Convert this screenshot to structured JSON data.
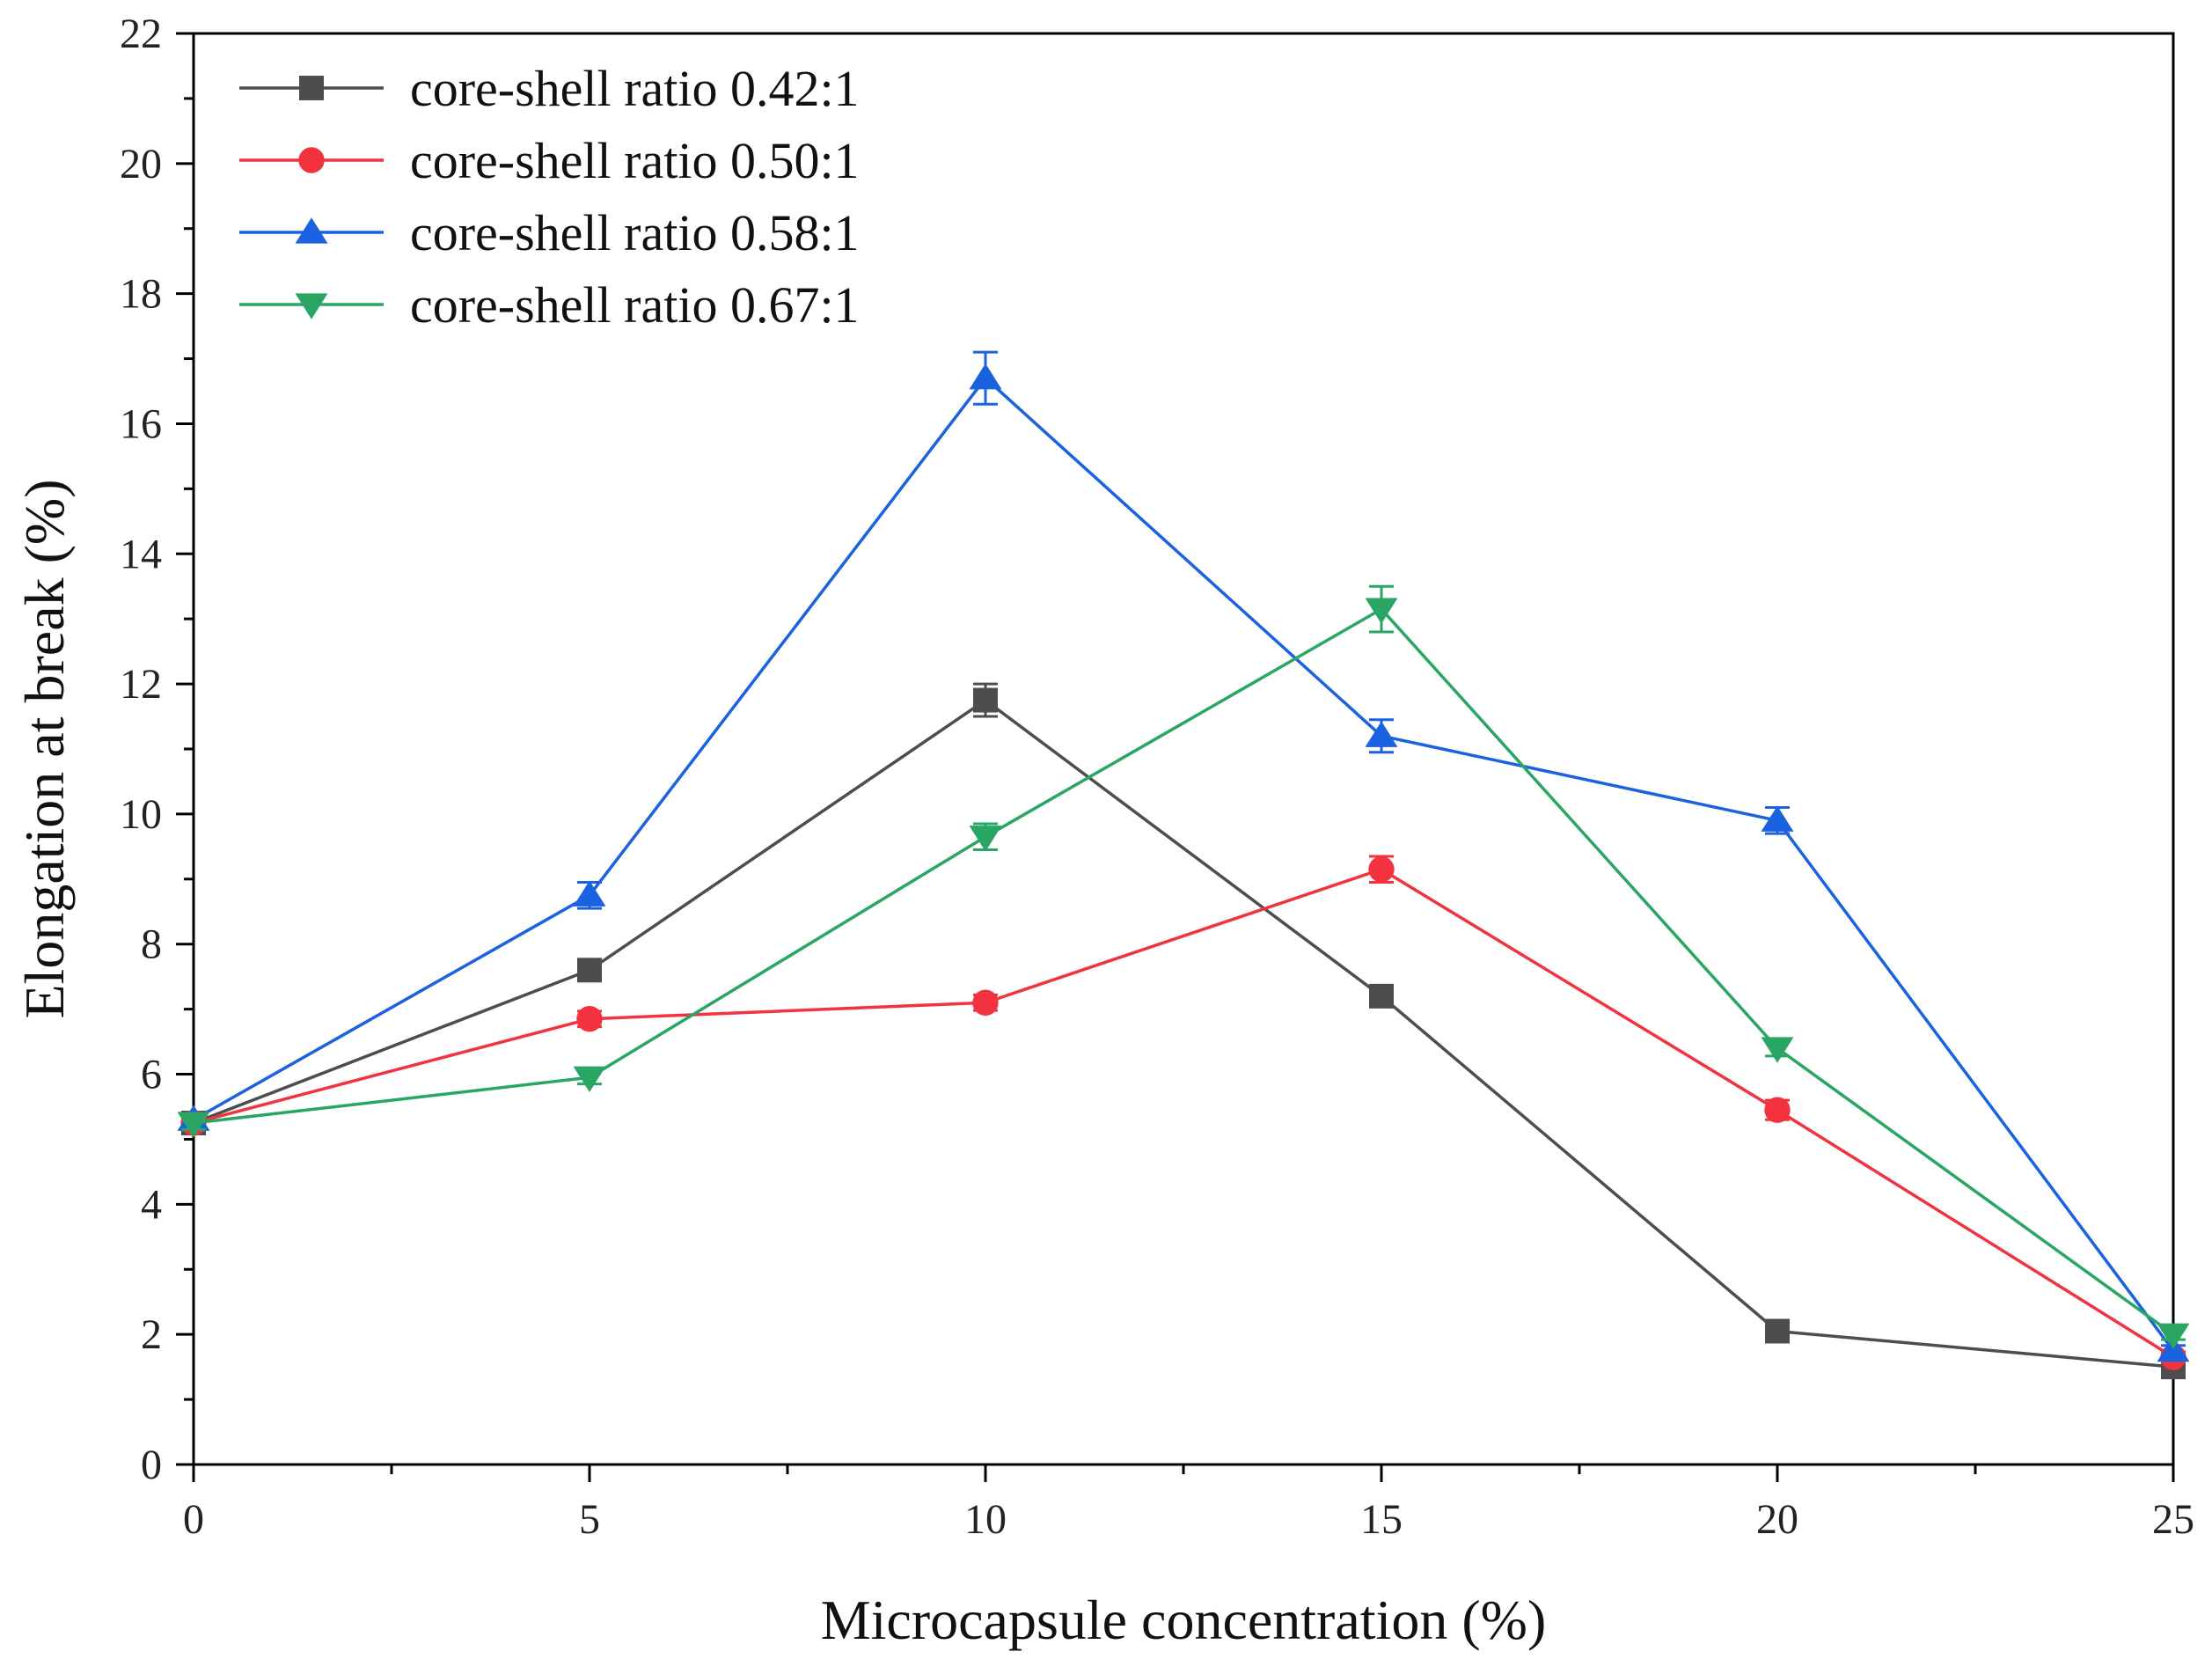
{
  "chart_data": {
    "type": "line",
    "title": "",
    "xlabel": "Microcapsule concentration (%)",
    "ylabel": "Elongation at break (%)",
    "x": [
      0,
      5,
      10,
      15,
      20,
      25
    ],
    "xlim": [
      0,
      25
    ],
    "ylim": [
      0,
      22
    ],
    "xticks": [
      0,
      5,
      10,
      15,
      20,
      25
    ],
    "yticks": [
      0,
      2,
      4,
      6,
      8,
      10,
      12,
      14,
      16,
      18,
      20,
      22
    ],
    "grid": false,
    "legend_position": "top-left",
    "series": [
      {
        "name": "core-shell ratio 0.42:1",
        "color": "#4d4d4d",
        "marker": "square",
        "values": [
          5.25,
          7.6,
          11.75,
          7.2,
          2.05,
          1.5
        ],
        "errors": [
          0.1,
          0.12,
          0.25,
          0.1,
          0.08,
          0.08
        ]
      },
      {
        "name": "core-shell ratio 0.50:1",
        "color": "#f2333f",
        "marker": "circle",
        "values": [
          5.25,
          6.85,
          7.1,
          9.15,
          5.45,
          1.65
        ],
        "errors": [
          0.1,
          0.12,
          0.12,
          0.2,
          0.15,
          0.08
        ]
      },
      {
        "name": "core-shell ratio 0.58:1",
        "color": "#1a62e0",
        "marker": "triangle-up",
        "values": [
          5.3,
          8.75,
          16.7,
          11.2,
          9.9,
          1.75
        ],
        "errors": [
          0.1,
          0.2,
          0.4,
          0.25,
          0.2,
          0.08
        ]
      },
      {
        "name": "core-shell ratio 0.67:1",
        "color": "#2aa664",
        "marker": "triangle-down",
        "values": [
          5.25,
          5.95,
          9.65,
          13.15,
          6.4,
          2.0
        ],
        "errors": [
          0.1,
          0.1,
          0.2,
          0.35,
          0.12,
          0.08
        ]
      }
    ]
  }
}
